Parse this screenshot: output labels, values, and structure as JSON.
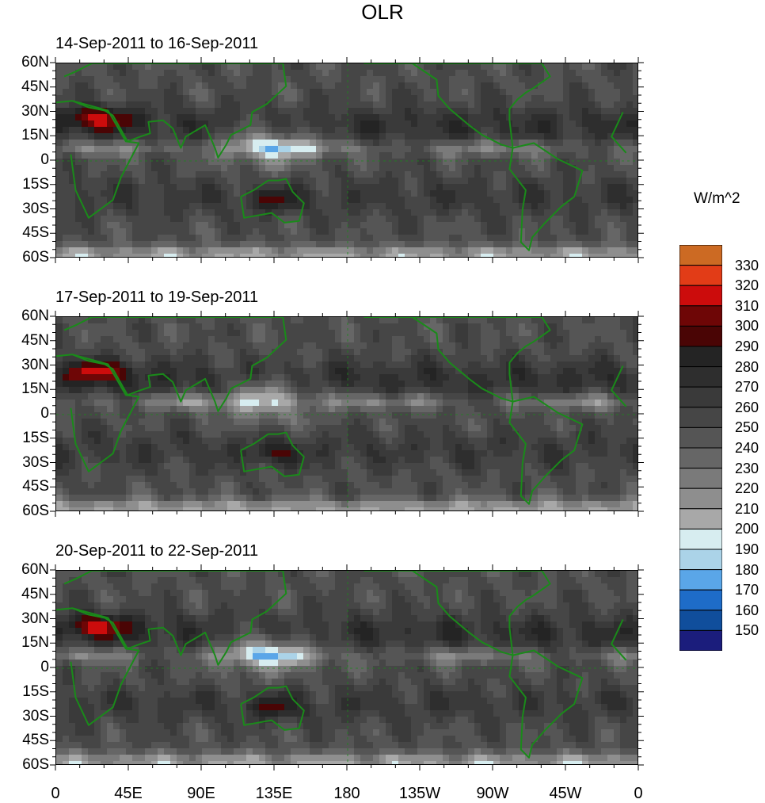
{
  "title": "OLR",
  "panels": [
    {
      "title": "14-Sep-2011 to 16-Sep-2011"
    },
    {
      "title": "17-Sep-2011 to 19-Sep-2011"
    },
    {
      "title": "20-Sep-2011 to 22-Sep-2011"
    }
  ],
  "lat_labels": [
    "60N",
    "45N",
    "30N",
    "15N",
    "0",
    "15S",
    "30S",
    "45S",
    "60S"
  ],
  "lon_labels": [
    "0",
    "45E",
    "90E",
    "135E",
    "180",
    "135W",
    "90W",
    "45W",
    "0"
  ],
  "colorbar": {
    "unit": "W/m^2",
    "levels": [
      "330",
      "320",
      "310",
      "300",
      "290",
      "280",
      "270",
      "260",
      "250",
      "240",
      "230",
      "220",
      "210",
      "200",
      "190",
      "180",
      "170",
      "160",
      "150"
    ],
    "colors": [
      "#cc6a23",
      "#e23c17",
      "#cc0c0c",
      "#6e0606",
      "#4a0505",
      "#242424",
      "#2e2e2e",
      "#3a3a3a",
      "#464646",
      "#555555",
      "#666666",
      "#7a7a7a",
      "#8e8e8e",
      "#a8a8a8",
      "#d7edf0",
      "#abd3e8",
      "#5aa6e8",
      "#1e6cc8",
      "#104e9c",
      "#1b1d7c"
    ]
  },
  "map_style": {
    "land_outline": "#1a8a1a"
  }
}
